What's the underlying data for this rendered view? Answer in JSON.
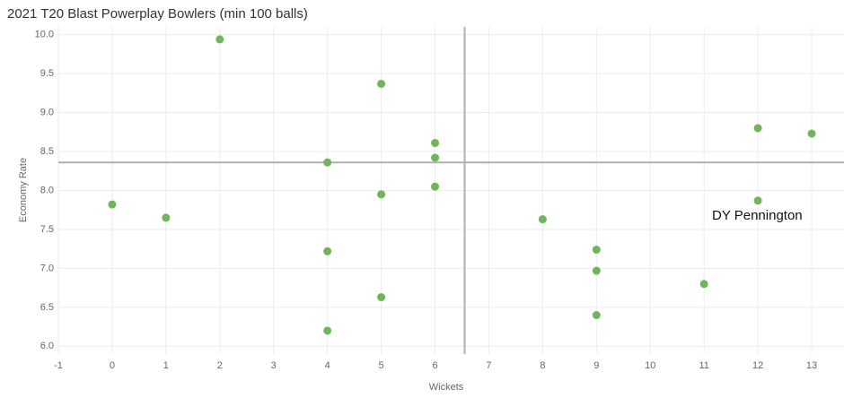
{
  "chart_data": {
    "type": "scatter",
    "title": "2021 T20 Blast Powerplay Bowlers (min 100 balls)",
    "x_label": "Wickets",
    "y_label": "Economy Rate",
    "x": [
      0,
      1,
      2,
      4,
      4,
      4,
      5,
      5,
      5,
      6,
      6,
      6,
      8,
      9,
      9,
      9,
      11,
      12,
      12,
      13
    ],
    "values": [
      7.82,
      7.65,
      9.94,
      8.36,
      7.22,
      6.2,
      9.37,
      7.95,
      6.63,
      8.61,
      8.42,
      8.05,
      7.63,
      7.24,
      6.97,
      6.4,
      6.8,
      8.8,
      7.87,
      8.73
    ],
    "color": "#6fb55c",
    "annotation": "DY Pennington",
    "x_reference": 6.55,
    "y_reference": 8.36,
    "xlim": [
      -1,
      13.6
    ],
    "ylim": [
      5.9,
      10.1
    ],
    "xticks": [
      -1,
      0,
      1,
      2,
      3,
      4,
      5,
      6,
      7,
      8,
      9,
      10,
      11,
      12,
      13
    ],
    "yticks": [
      {
        "value": 6,
        "label": "6.0"
      },
      {
        "value": 6.5,
        "label": "6.5"
      },
      {
        "value": 7,
        "label": "7.0"
      },
      {
        "value": 7.5,
        "label": "7.5"
      },
      {
        "value": 8,
        "label": "8.0"
      },
      {
        "value": 8.5,
        "label": "8.5"
      },
      {
        "value": 9,
        "label": "9.0"
      },
      {
        "value": 9.5,
        "label": "9.5"
      },
      {
        "value": 10,
        "label": "10.0"
      }
    ],
    "grid": true
  }
}
